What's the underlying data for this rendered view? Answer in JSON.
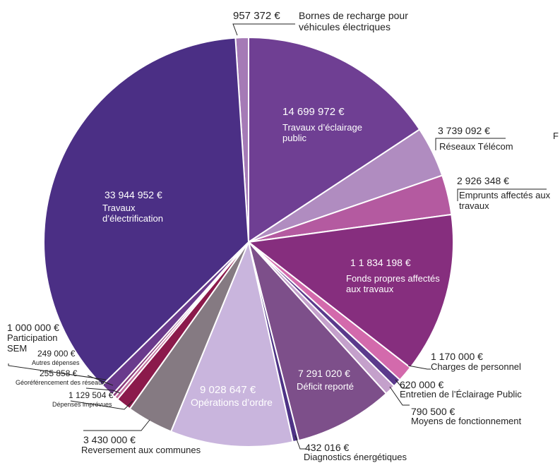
{
  "chart_data": {
    "type": "pie",
    "annotation": "F",
    "categories": [
      "Bornes de recharge pour véhicules électriques",
      "Travaux d’éclairage public",
      "Réseaux Télécom",
      "Emprunts affectés aux travaux",
      "Fonds propres affectés aux travaux",
      "Charges de personnel",
      "Entretien de l’Éclairage Public",
      "Moyens de fonctionnement",
      "Déficit reporté",
      "Diagnostics énergétiques",
      "Opérations d’ordre",
      "Reversement aux communes",
      "Dépenses imprévues",
      "Géoréférencement des réseaux",
      "Autres dépenses",
      "Participation SEM",
      "Travaux d’électrification"
    ],
    "values": [
      957372,
      14699972,
      3739092,
      2926348,
      11834198,
      1170000,
      620000,
      790500,
      7291020,
      432016,
      9028647,
      3430000,
      1129504,
      255858,
      249000,
      1000000,
      33944952
    ],
    "value_labels": [
      "957 372 €",
      "14 699 972 €",
      "3 739 092 €",
      "2 926 348 €",
      "1 1 834 198 €",
      "1 170 000 €",
      "620 000 €",
      "790 500 €",
      "7 291 020 €",
      "432 016 €",
      "9 028 647 €",
      "3 430 000 €",
      "1 129 504 €",
      "255 858 €",
      "249 000 €",
      "1 000 000 €",
      "33 944 952 €"
    ],
    "colors": [
      "#a57ab6",
      "#6f3f93",
      "#b08cc0",
      "#b45aa0",
      "#862e7e",
      "#d36aac",
      "#5b3a8c",
      "#c4a0cb",
      "#7d4f8a",
      "#4e3386",
      "#c9b5dd",
      "#857a82",
      "#8b1a4b",
      "#c06a9a",
      "#8a3a7a",
      "#6a3a8c",
      "#4b2f85"
    ]
  }
}
